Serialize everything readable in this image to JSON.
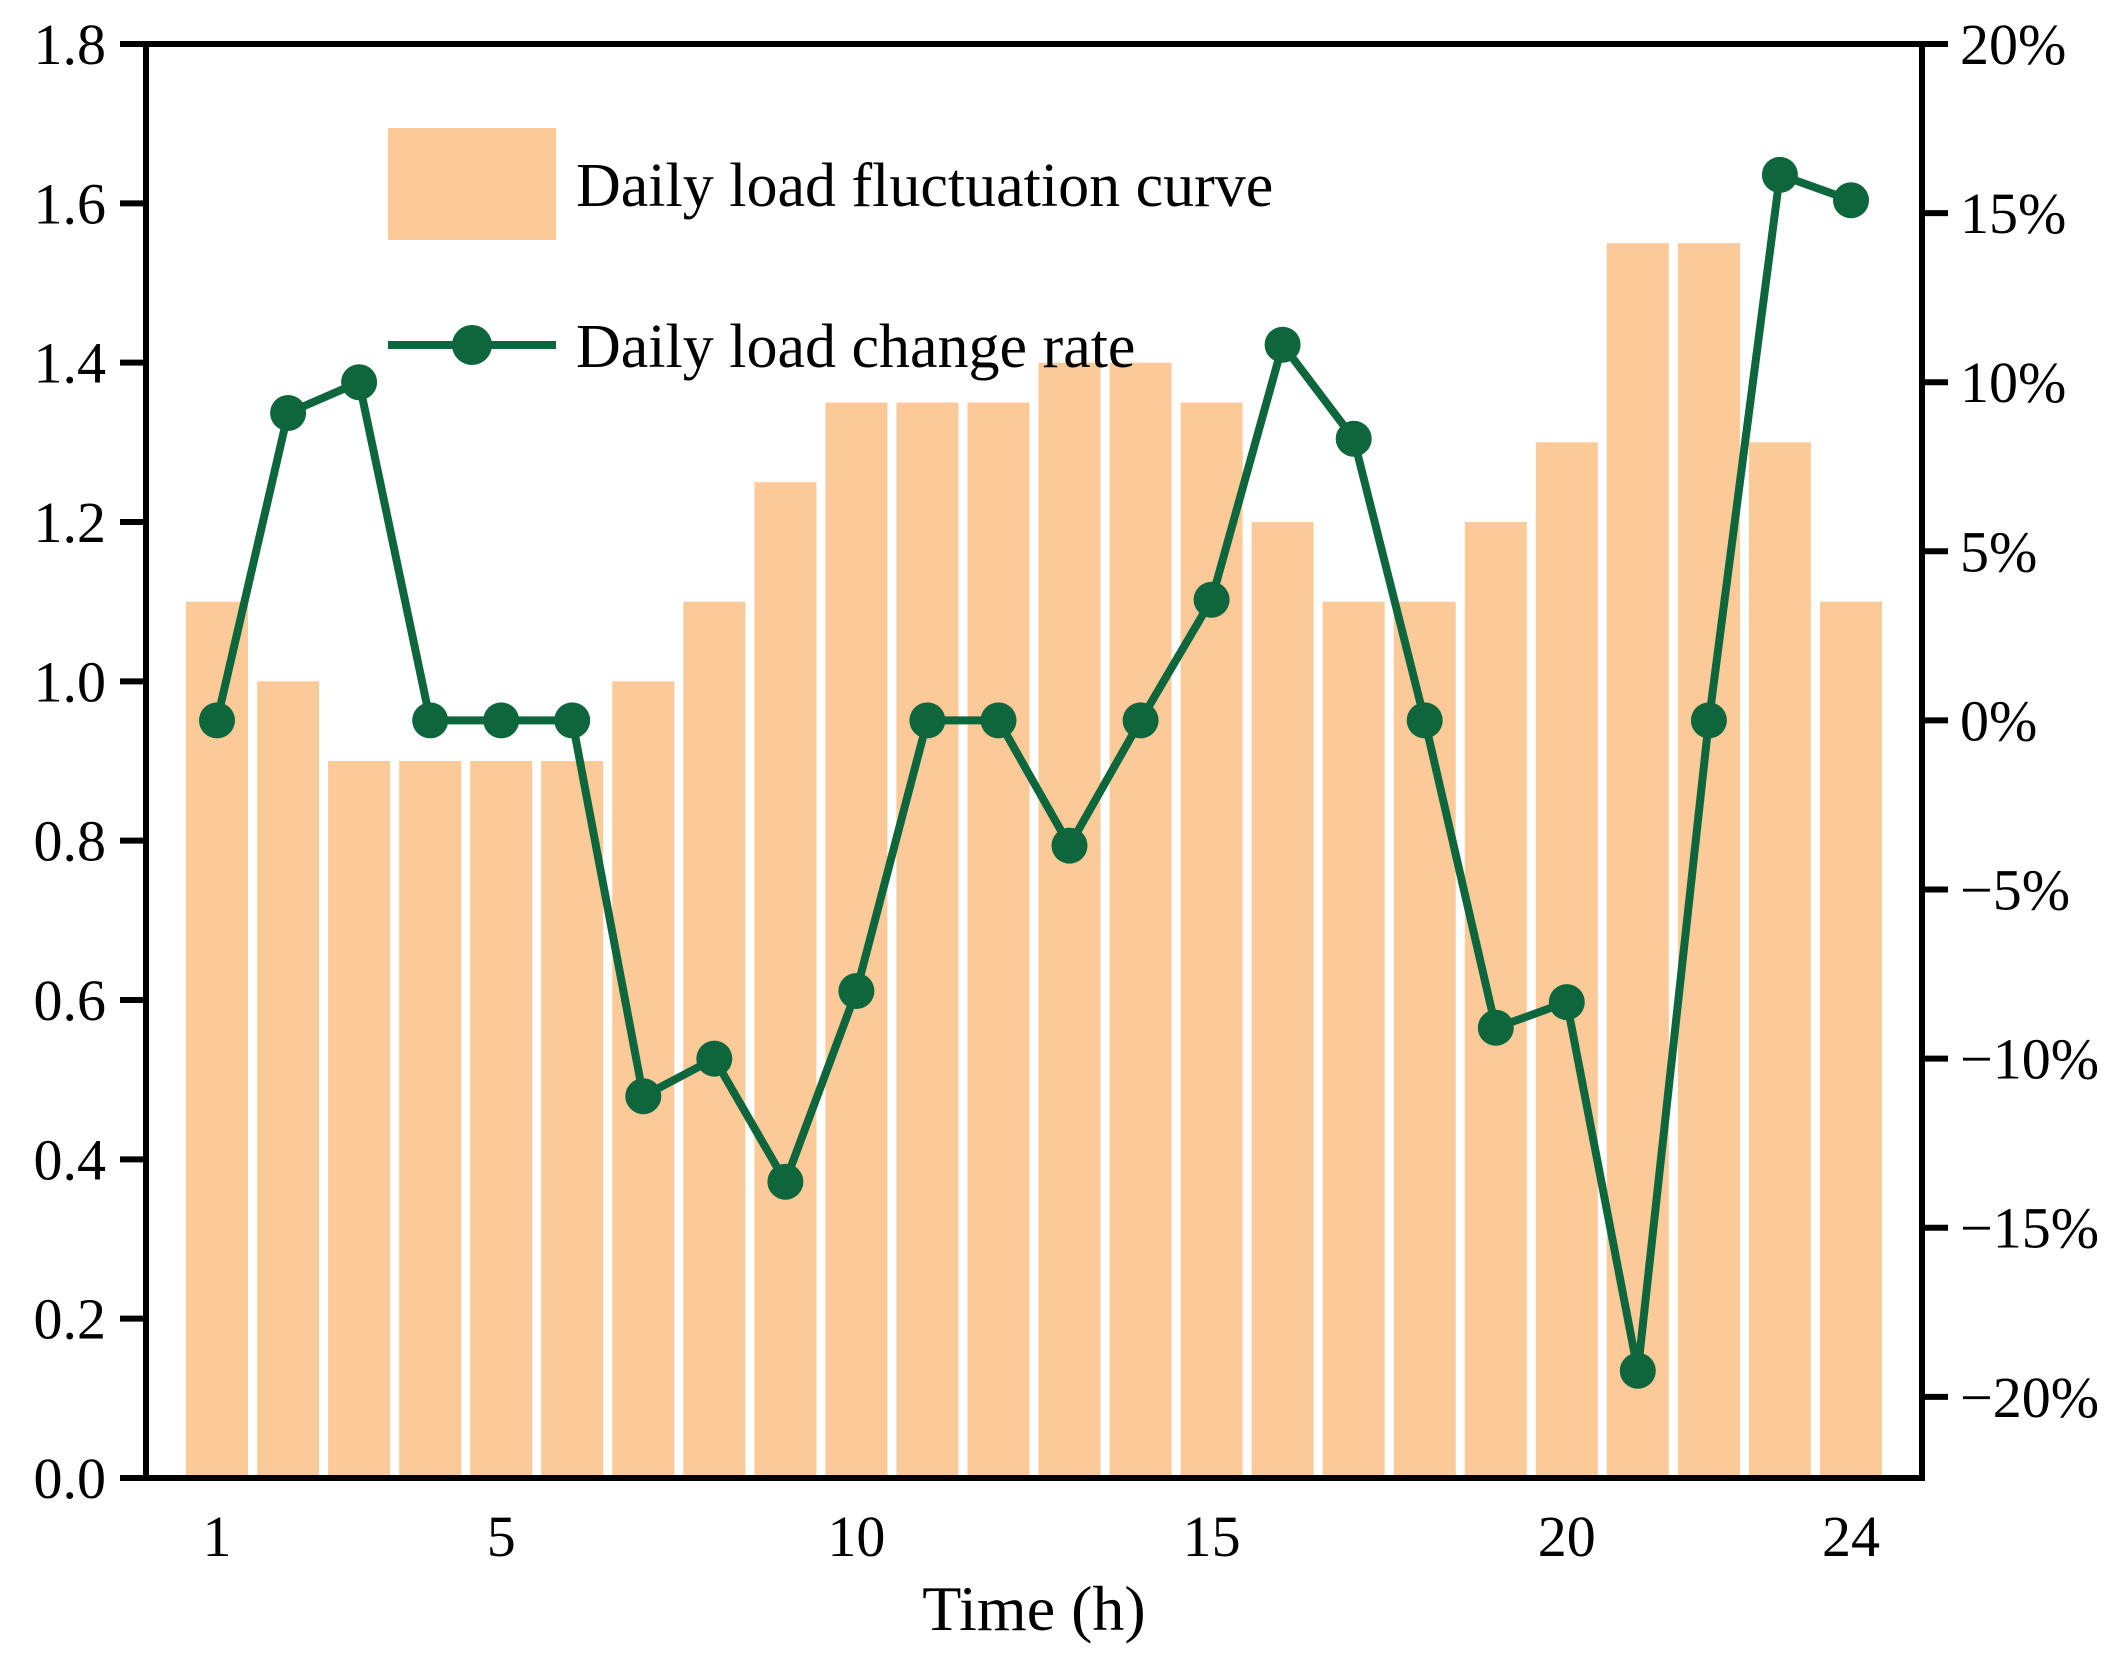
{
  "figure": {
    "xlabel": "Time (h)",
    "x_tick_labels": [
      "1",
      "5",
      "10",
      "15",
      "20",
      "24"
    ],
    "x_tick_values": [
      1,
      5,
      10,
      15,
      20,
      24
    ],
    "left_axis_tick_labels": [
      "1.8",
      "1.6",
      "1.4",
      "1.2",
      "1.0",
      "0.8",
      "0.6",
      "0.4",
      "0.2",
      "0.0"
    ],
    "right_axis_tick_labels": [
      "20%",
      "15%",
      "10%",
      "5%",
      "0%",
      "−5%",
      "−10%",
      "−15%",
      "−20%"
    ],
    "legend": {
      "bar_label": "Daily load fluctuation curve",
      "line_label": "Daily load change rate"
    },
    "colors": {
      "bar_fill": "#fbca98",
      "line_green": "#0d663c",
      "axis_black": "#000000",
      "background": "#ffffff"
    }
  },
  "chart_data": {
    "type": "bar+line combo",
    "x": [
      1,
      2,
      3,
      4,
      5,
      6,
      7,
      8,
      9,
      10,
      11,
      12,
      13,
      14,
      15,
      16,
      17,
      18,
      19,
      20,
      21,
      22,
      23,
      24
    ],
    "xlabel": "Time (h)",
    "xlim": [
      0,
      25
    ],
    "grid": false,
    "legend_position": "upper left",
    "series": [
      {
        "name": "Daily load fluctuation curve",
        "type": "bar",
        "axis": "left",
        "color": "#fbca98",
        "ylim": [
          0,
          1.8
        ],
        "values": [
          1.1,
          1.0,
          0.9,
          0.9,
          0.9,
          0.9,
          1.0,
          1.1,
          1.25,
          1.35,
          1.35,
          1.35,
          1.4,
          1.4,
          1.35,
          1.2,
          1.1,
          1.1,
          1.2,
          1.3,
          1.55,
          1.55,
          1.3,
          1.1
        ]
      },
      {
        "name": "Daily load change rate",
        "type": "line",
        "axis": "right",
        "color": "#0d663c",
        "unit": "percent",
        "ylim_percent": [
          -22.4,
          20
        ],
        "values_percent": [
          0,
          9.09,
          10.0,
          0,
          0,
          0,
          -11.11,
          -10.0,
          -13.64,
          -8.0,
          0,
          0,
          -3.7,
          0,
          3.57,
          11.11,
          8.33,
          0,
          -9.09,
          -8.33,
          -19.23,
          0,
          16.13,
          15.38
        ]
      }
    ]
  }
}
